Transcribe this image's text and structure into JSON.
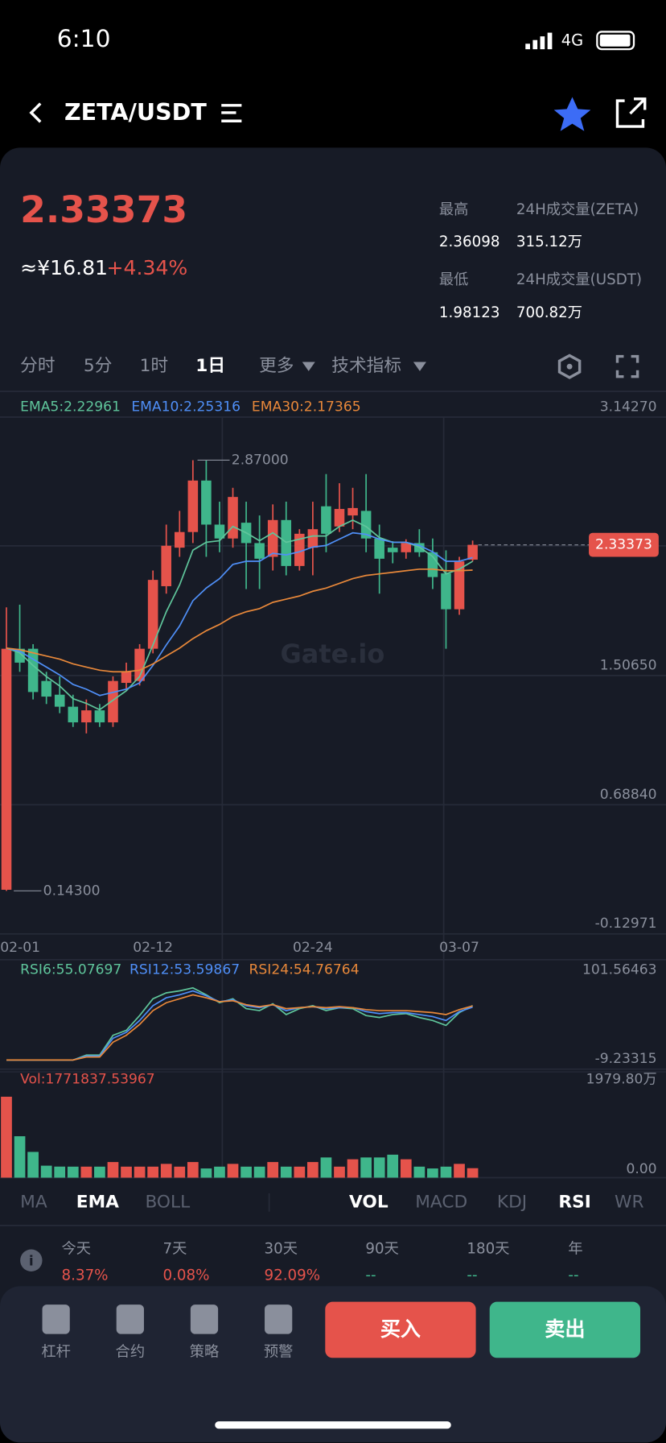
{
  "status_bar": {
    "time": "6:10",
    "network": "4G"
  },
  "header": {
    "pair": "ZETA/USDT"
  },
  "ticker": {
    "price": "2.33373",
    "cny": "≈¥16.81",
    "change": "+4.34%",
    "stats": [
      {
        "label": "最高",
        "value": "2.36098"
      },
      {
        "label": "24H成交量(ZETA)",
        "value": "315.12万"
      },
      {
        "label": "最低",
        "value": "1.98123"
      },
      {
        "label": "24H成交量(USDT)",
        "value": "700.82万"
      }
    ]
  },
  "periods": [
    {
      "label": "分时"
    },
    {
      "label": "5分"
    },
    {
      "label": "1时"
    },
    {
      "label": "1日",
      "active": true
    },
    {
      "label": "更多"
    },
    {
      "label": "技术指标"
    }
  ],
  "chart_data": [
    {
      "type": "candlestick",
      "watermark": "Gate.io",
      "up_color": "#e5534b",
      "down_color": "#3fb68b",
      "categories": [
        "02-01",
        null,
        null,
        null,
        null,
        null,
        null,
        null,
        null,
        null,
        null,
        "02-12",
        null,
        null,
        null,
        null,
        null,
        null,
        null,
        null,
        null,
        null,
        null,
        "02-24",
        null,
        null,
        null,
        null,
        null,
        null,
        null,
        null,
        null,
        null,
        "03-07",
        null
      ],
      "ohlc": [
        [
          0.15,
          1.938,
          0.143,
          1.676
        ],
        [
          1.676,
          1.955,
          1.53,
          1.588
        ],
        [
          1.676,
          1.705,
          1.355,
          1.402
        ],
        [
          1.472,
          1.53,
          1.326,
          1.373
        ],
        [
          1.385,
          1.501,
          1.268,
          1.309
        ],
        [
          1.309,
          1.385,
          1.181,
          1.21
        ],
        [
          1.21,
          1.355,
          1.14,
          1.286
        ],
        [
          1.286,
          1.326,
          1.181,
          1.21
        ],
        [
          1.21,
          1.501,
          1.181,
          1.472
        ],
        [
          1.46,
          1.588,
          1.414,
          1.53
        ],
        [
          1.472,
          1.705,
          1.443,
          1.676
        ],
        [
          1.676,
          2.171,
          1.647,
          2.112
        ],
        [
          2.072,
          2.462,
          2.025,
          2.328
        ],
        [
          2.316,
          2.549,
          2.258,
          2.415
        ],
        [
          2.415,
          2.87,
          2.345,
          2.741
        ],
        [
          2.741,
          2.87,
          2.258,
          2.462
        ],
        [
          2.462,
          2.607,
          2.287,
          2.374
        ],
        [
          2.374,
          2.695,
          2.316,
          2.637
        ],
        [
          2.474,
          2.607,
          2.054,
          2.345
        ],
        [
          2.345,
          2.52,
          2.054,
          2.246
        ],
        [
          2.258,
          2.59,
          2.171,
          2.491
        ],
        [
          2.491,
          2.607,
          2.141,
          2.2
        ],
        [
          2.2,
          2.433,
          2.171,
          2.404
        ],
        [
          2.316,
          2.607,
          2.141,
          2.433
        ],
        [
          2.578,
          2.782,
          2.287,
          2.404
        ],
        [
          2.45,
          2.724,
          2.415,
          2.561
        ],
        [
          2.52,
          2.695,
          2.433,
          2.567
        ],
        [
          2.549,
          2.782,
          2.287,
          2.374
        ],
        [
          2.374,
          2.462,
          2.025,
          2.246
        ],
        [
          2.316,
          2.357,
          2.217,
          2.287
        ],
        [
          2.287,
          2.369,
          2.246,
          2.345
        ],
        [
          2.345,
          2.433,
          2.258,
          2.287
        ],
        [
          2.287,
          2.374,
          2.054,
          2.13
        ],
        [
          2.153,
          2.299,
          1.676,
          1.926
        ],
        [
          1.926,
          2.258,
          1.891,
          2.229
        ],
        [
          2.24,
          2.361,
          2.229,
          2.334
        ]
      ],
      "series": [
        {
          "name": "EMA5:2.22961",
          "color": "#5fc59b",
          "values": [
            1.68,
            1.65,
            1.57,
            1.5,
            1.44,
            1.36,
            1.33,
            1.29,
            1.35,
            1.41,
            1.5,
            1.7,
            1.91,
            2.08,
            2.3,
            2.35,
            2.36,
            2.45,
            2.41,
            2.36,
            2.41,
            2.35,
            2.37,
            2.39,
            2.39,
            2.45,
            2.49,
            2.45,
            2.38,
            2.35,
            2.35,
            2.32,
            2.26,
            2.15,
            2.18,
            2.22961
          ]
        },
        {
          "name": "EMA10:2.25316",
          "color": "#4f8ff7",
          "values": [
            1.68,
            1.66,
            1.61,
            1.56,
            1.51,
            1.45,
            1.42,
            1.38,
            1.4,
            1.42,
            1.46,
            1.57,
            1.7,
            1.82,
            1.98,
            2.06,
            2.12,
            2.21,
            2.23,
            2.23,
            2.28,
            2.27,
            2.29,
            2.32,
            2.33,
            2.37,
            2.41,
            2.4,
            2.37,
            2.35,
            2.35,
            2.33,
            2.29,
            2.23,
            2.23,
            2.25316
          ]
        },
        {
          "name": "EMA30:2.17365",
          "color": "#e8883a",
          "values": [
            1.68,
            1.67,
            1.65,
            1.63,
            1.61,
            1.58,
            1.56,
            1.54,
            1.53,
            1.53,
            1.54,
            1.58,
            1.63,
            1.68,
            1.74,
            1.79,
            1.83,
            1.88,
            1.91,
            1.93,
            1.97,
            1.99,
            2.01,
            2.04,
            2.06,
            2.09,
            2.12,
            2.14,
            2.15,
            2.16,
            2.17,
            2.18,
            2.18,
            2.17,
            2.17,
            2.17365
          ]
        }
      ],
      "ylim": [
        -0.12971,
        3.1427
      ],
      "yticks": [
        {
          "value": 3.1427,
          "label": "3.14270"
        },
        {
          "value": 1.5065,
          "label": "1.50650"
        },
        {
          "value": 0.6884,
          "label": "0.68840"
        },
        -0.12971
      ],
      "max_label": {
        "value": 2.87,
        "label": "2.87000",
        "index": 14
      },
      "min_label": {
        "value": 0.143,
        "label": "0.14300",
        "index": 0
      },
      "last_price": {
        "value": 2.33373,
        "label": "2.33373"
      }
    },
    {
      "type": "line",
      "series": [
        {
          "name": "RSI6:55.07697",
          "color": "#5fc59b",
          "values": [
            0,
            0,
            0,
            0,
            0,
            0,
            5,
            5,
            25,
            30,
            45,
            62,
            68,
            70,
            73,
            66,
            58,
            62,
            52,
            50,
            57,
            46,
            52,
            55,
            50,
            53,
            52,
            45,
            43,
            46,
            47,
            43,
            40,
            35,
            48,
            55.07697
          ]
        },
        {
          "name": "RSI12:53.59867",
          "color": "#4f8ff7",
          "values": [
            0,
            0,
            0,
            0,
            0,
            0,
            4,
            4,
            22,
            28,
            40,
            55,
            63,
            66,
            70,
            65,
            59,
            61,
            55,
            53,
            56,
            50,
            53,
            54,
            52,
            53,
            53,
            49,
            47,
            48,
            48,
            46,
            44,
            40,
            49,
            53.59867
          ]
        },
        {
          "name": "RSI24:54.76764",
          "color": "#e8883a",
          "values": [
            0,
            0,
            0,
            0,
            0,
            0,
            3,
            3,
            18,
            25,
            36,
            50,
            58,
            62,
            66,
            63,
            59,
            60,
            56,
            54,
            56,
            52,
            53,
            54,
            53,
            54,
            53,
            51,
            50,
            50,
            50,
            49,
            48,
            46,
            51,
            54.76764
          ]
        }
      ],
      "ylim": [
        -9.23315,
        101.56463
      ],
      "yticks": [
        101.56463,
        -9.23315
      ]
    },
    {
      "type": "bar",
      "legend": "Vol:1771837.53967",
      "values": [
        1515,
        775,
        482,
        224,
        207,
        206,
        206,
        206,
        292,
        206,
        206,
        206,
        258,
        206,
        292,
        172,
        206,
        258,
        206,
        206,
        292,
        206,
        206,
        292,
        378,
        206,
        344,
        378,
        378,
        430,
        344,
        206,
        172,
        206,
        258,
        177.18
      ],
      "ylim": [
        0,
        1979.8
      ],
      "yticks": [
        {
          "value": 1979.8,
          "label": "1979.80万"
        },
        {
          "value": 0,
          "label": "0.00"
        }
      ]
    }
  ],
  "indicators": {
    "main": [
      {
        "label": "MA"
      },
      {
        "label": "EMA",
        "active": true
      },
      {
        "label": "BOLL"
      }
    ],
    "sub": [
      {
        "label": "VOL",
        "active": true
      },
      {
        "label": "MACD"
      },
      {
        "label": "KDJ"
      },
      {
        "label": "RSI",
        "active": true
      },
      {
        "label": "WR"
      }
    ]
  },
  "returns": [
    {
      "label": "今天",
      "value": "8.37%",
      "dir": "up"
    },
    {
      "label": "7天",
      "value": "0.08%",
      "dir": "up"
    },
    {
      "label": "30天",
      "value": "92.09%",
      "dir": "up"
    },
    {
      "label": "90天",
      "value": "--"
    },
    {
      "label": "180天",
      "value": "--"
    },
    {
      "label": "年",
      "value": "--"
    }
  ],
  "toolbar": [
    "杠杆",
    "合约",
    "策略",
    "预警"
  ],
  "buttons": {
    "buy": "买入",
    "sell": "卖出"
  }
}
